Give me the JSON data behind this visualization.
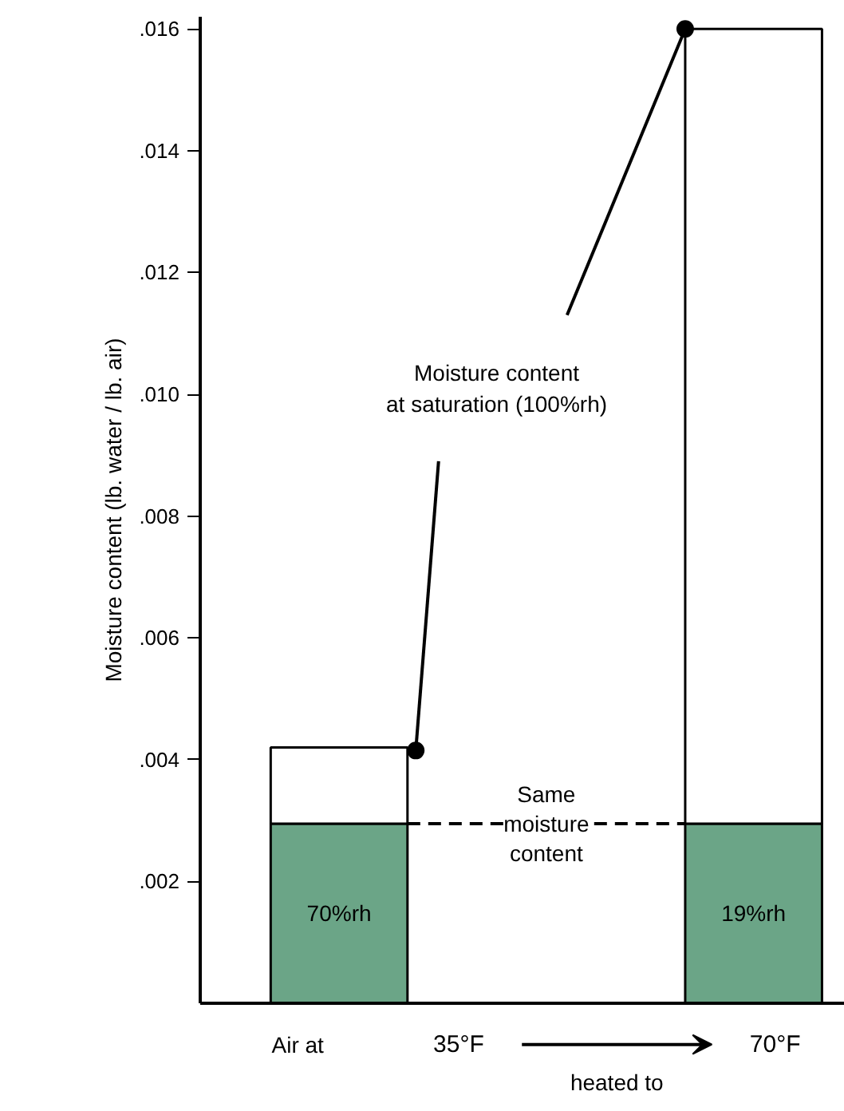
{
  "chart_data": {
    "type": "bar",
    "stacked": true,
    "ylabel": "Moisture content (lb. water / lb. air)",
    "categories": [
      "35°F",
      "70°F"
    ],
    "series": [
      {
        "color": "#6ba587",
        "values": [
          0.00295,
          0.00295
        ]
      },
      {
        "color": "#ffffff",
        "values": [
          0.00125,
          0.01305
        ]
      }
    ],
    "ylim": [
      0,
      0.0162
    ],
    "yticks": [
      {
        "value": 0.002,
        "label": ".002"
      },
      {
        "value": 0.004,
        "label": ".004"
      },
      {
        "value": 0.006,
        "label": ".006"
      },
      {
        "value": 0.008,
        "label": ".008"
      },
      {
        "value": 0.01,
        "label": ".010"
      },
      {
        "value": 0.012,
        "label": ".012"
      },
      {
        "value": 0.014,
        "label": ".014"
      },
      {
        "value": 0.016,
        "label": ".016"
      }
    ],
    "grid": false,
    "ref_lines": [
      {
        "axis": "y",
        "value": 0.00295,
        "label": "Same\nmoisture\ncontent",
        "line_style": "dashed",
        "color": "#000000"
      }
    ],
    "annotations": [
      "Moisture content\nat saturation (100%rh)",
      "Air at",
      "heated to",
      "70%rh",
      "19%rh"
    ]
  }
}
